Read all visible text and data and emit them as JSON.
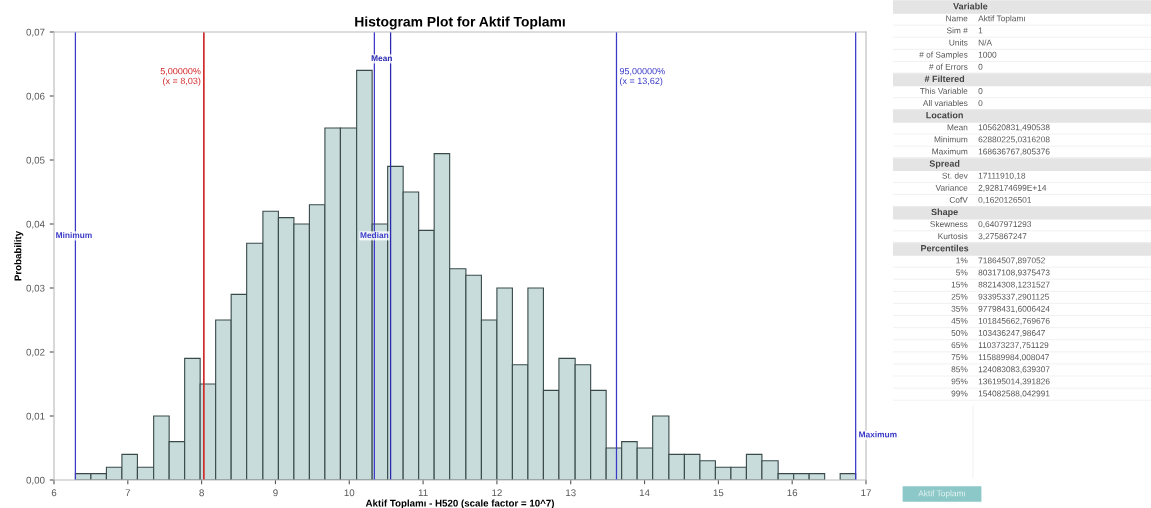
{
  "chart_data": [
    {
      "type": "histogram",
      "title": "Histogram Plot for Aktif Toplamı",
      "xlabel": "Aktif Toplamı - H520 (scale factor = 10^7)",
      "ylabel": "Probability",
      "color": "#c8dcdc",
      "bins": [
        6.29,
        6.5,
        6.71,
        6.92,
        7.13,
        7.35,
        7.56,
        7.77,
        7.98,
        8.19,
        8.4,
        8.61,
        8.83,
        9.04,
        9.25,
        9.46,
        9.67,
        9.88,
        10.1,
        10.31,
        10.52,
        10.73,
        10.94,
        11.15,
        11.36,
        11.58,
        11.79,
        12.0,
        12.21,
        12.42,
        12.63,
        12.84,
        13.06,
        13.27,
        13.48,
        13.69,
        13.9,
        14.11,
        14.33,
        14.54,
        14.75,
        14.96,
        15.17,
        15.38,
        15.59,
        15.81,
        16.02,
        16.23,
        16.44,
        16.65,
        16.86
      ],
      "values": [
        0.001,
        0.001,
        0.002,
        0.004,
        0.002,
        0.01,
        0.006,
        0.019,
        0.015,
        0.025,
        0.029,
        0.037,
        0.042,
        0.041,
        0.04,
        0.043,
        0.055,
        0.055,
        0.064,
        0.04,
        0.049,
        0.045,
        0.039,
        0.051,
        0.033,
        0.032,
        0.025,
        0.03,
        0.018,
        0.03,
        0.014,
        0.019,
        0.018,
        0.014,
        0.005,
        0.006,
        0.005,
        0.01,
        0.004,
        0.004,
        0.003,
        0.002,
        0.002,
        0.004,
        0.003,
        0.001,
        0.001,
        0.001,
        0,
        0.001
      ],
      "xlim": [
        6,
        17
      ],
      "xticks": [
        6,
        7,
        8,
        9,
        10,
        11,
        12,
        13,
        14,
        15,
        16,
        17
      ],
      "ylim": [
        0,
        0.07
      ],
      "yticks": [
        {
          "value": 0,
          "label": "0,00"
        },
        {
          "value": 0.01,
          "label": "0,01"
        },
        {
          "value": 0.02,
          "label": "0,02"
        },
        {
          "value": 0.03,
          "label": "0,03"
        },
        {
          "value": 0.04,
          "label": "0,04"
        },
        {
          "value": 0.05,
          "label": "0,05"
        },
        {
          "value": 0.06,
          "label": "0,06"
        },
        {
          "value": 0.07,
          "label": "0,07"
        }
      ],
      "grid": false,
      "ref_lines": [
        {
          "axis": "x",
          "value": 6.29,
          "label": "Minimum",
          "color": "#3a3ac8"
        },
        {
          "axis": "x",
          "value": 8.03,
          "label": "5,00000%\n(x = 8,03)",
          "color": "#d02828"
        },
        {
          "axis": "x",
          "value": 10.34,
          "label": "Median",
          "color": "#3a3ac8"
        },
        {
          "axis": "x",
          "value": 10.56,
          "label": "Mean",
          "color": "#2828b0"
        },
        {
          "axis": "x",
          "value": 13.62,
          "label": "95,00000%\n(x = 13,62)",
          "color": "#3a3ac8"
        },
        {
          "axis": "x",
          "value": 16.86,
          "label": "Maximum",
          "color": "#3a3ac8"
        }
      ]
    },
    {
      "type": "other",
      "annotations": [
        "Variable",
        "Name\tAktif Toplamı",
        "Sim #\t1",
        "Units\tN/A",
        "# of Samples\t1000",
        "# of Errors\t0",
        "# Filtered",
        "This Variable\t0",
        "All variables\t0",
        "Location",
        "Mean\t105620831,490538",
        "Minimum\t62880225,0316208",
        "Maximum\t168636767,805376",
        "Spread",
        "St. dev\t17111910,18",
        "Variance\t2,928174699E+14",
        "CofV\t0,1620126501",
        "Shape",
        "Skewness\t0,6407971293",
        "Kurtosis\t3,275867247",
        "Percentiles",
        "1%\t71864507,897052",
        "5%\t80317108,9375473",
        "15%\t88214308,1231527",
        "25%\t93395337,2901125",
        "35%\t97798431,6006424",
        "45%\t101845662,769676",
        "50%\t103436247,98647",
        "65%\t110373237,751129",
        "75%\t115889984,008047",
        "85%\t124083083,639307",
        "95%\t136195014,391826",
        "99%\t154082588,042991",
        "Aktif Toplamı"
      ]
    }
  ]
}
